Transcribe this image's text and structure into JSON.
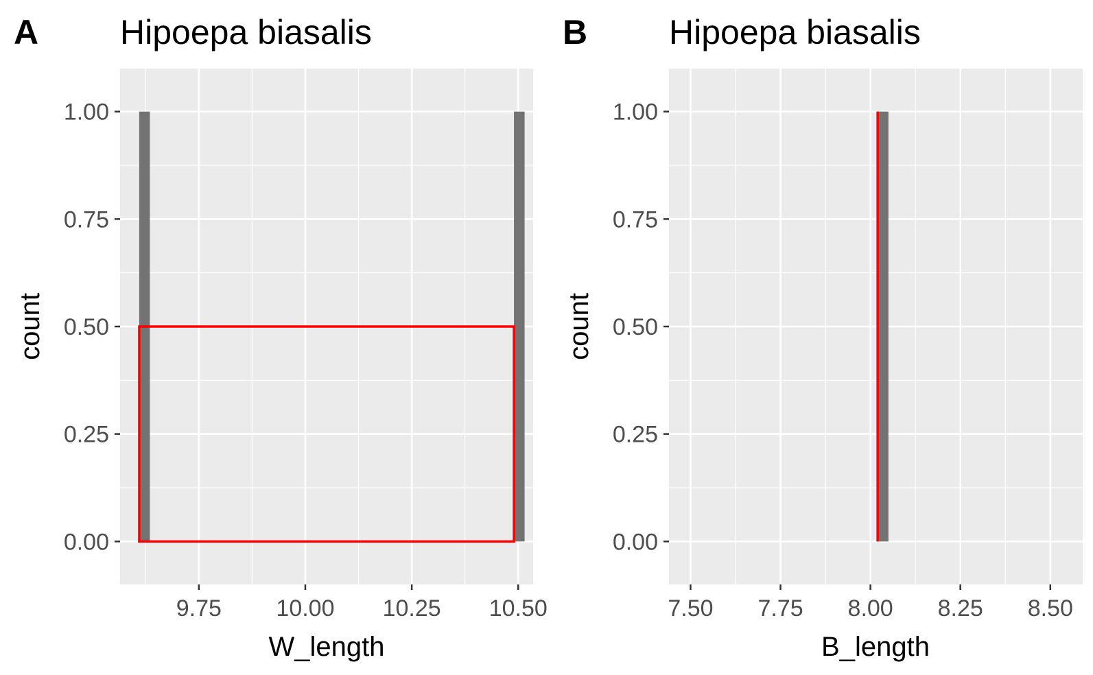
{
  "colors": {
    "panel_background": "#ebebeb",
    "grid_major": "#ffffff",
    "bar_fill": "#737373",
    "annotation": "#ff0000",
    "tick_mark": "#333333"
  },
  "chart_data": [
    {
      "type": "bar",
      "tag": "A",
      "title": "Hipoepa biasalis",
      "xlabel": "W_length",
      "ylabel": "count",
      "xlim": [
        9.565,
        10.535
      ],
      "ylim": [
        -0.1,
        1.1
      ],
      "x_ticks": [
        9.75,
        10.0,
        10.25,
        10.5
      ],
      "x_tick_labels": [
        "9.75",
        "10.00",
        "10.25",
        "10.50"
      ],
      "y_ticks": [
        0,
        0.25,
        0.5,
        0.75,
        1.0
      ],
      "y_tick_labels": [
        "0.00",
        "0.25",
        "0.50",
        "0.75",
        "1.00"
      ],
      "grid": true,
      "legend": "none",
      "bins": [
        {
          "x0": 9.61,
          "x1": 9.635,
          "count": 1
        },
        {
          "x0": 10.49,
          "x1": 10.515,
          "count": 1
        }
      ],
      "annotations": [
        {
          "shape": "rect",
          "x0": 9.61,
          "x1": 10.49,
          "y0": 0,
          "y1": 0.5,
          "color": "#ff0000"
        }
      ]
    },
    {
      "type": "bar",
      "tag": "B",
      "title": "Hipoepa biasalis",
      "xlabel": "B_length",
      "ylabel": "count",
      "xlim": [
        7.44,
        8.59
      ],
      "ylim": [
        -0.1,
        1.1
      ],
      "x_ticks": [
        7.5,
        7.75,
        8.0,
        8.25,
        8.5
      ],
      "x_tick_labels": [
        "7.50",
        "7.75",
        "8.00",
        "8.25",
        "8.50"
      ],
      "y_ticks": [
        0,
        0.25,
        0.5,
        0.75,
        1.0
      ],
      "y_tick_labels": [
        "0.00",
        "0.25",
        "0.50",
        "0.75",
        "1.00"
      ],
      "grid": true,
      "legend": "none",
      "bins": [
        {
          "x0": 8.02,
          "x1": 8.05,
          "count": 1
        }
      ],
      "annotations": [
        {
          "shape": "vline",
          "x": 8.02,
          "y0": 0,
          "y1": 1.0,
          "color": "#ff0000"
        }
      ]
    }
  ]
}
